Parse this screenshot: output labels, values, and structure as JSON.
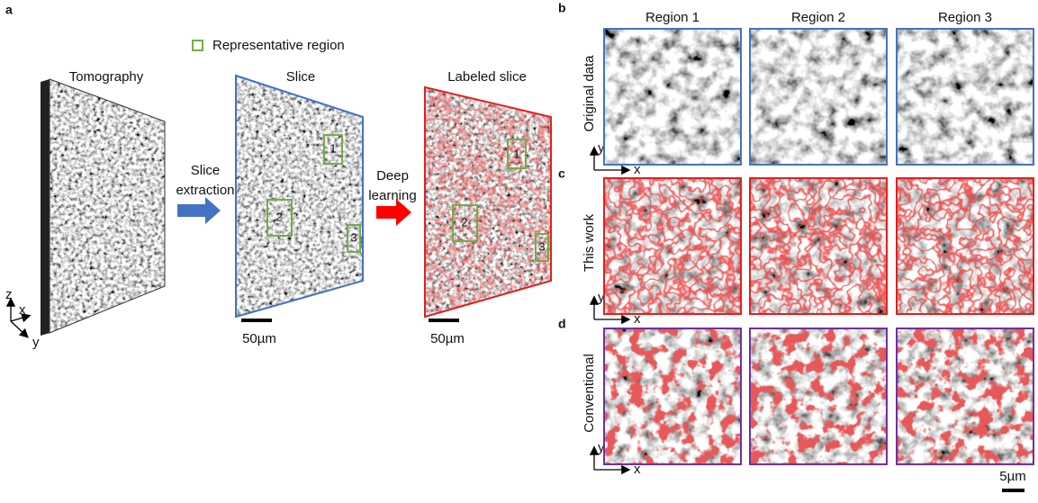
{
  "panel_a": {
    "label": "a",
    "legend": "Representative region",
    "titles": {
      "tomography": "Tomography",
      "slice": "Slice",
      "labeled": "Labeled slice"
    },
    "step1": [
      "Slice",
      "extraction"
    ],
    "step2": [
      "Deep",
      "learning"
    ],
    "scale_bars": [
      "50µm",
      "50µm"
    ],
    "axes": [
      "z",
      "x",
      "y"
    ],
    "slice_regions": [
      "1",
      "2",
      "3"
    ],
    "labeled_regions": [
      "1",
      "2",
      "3"
    ]
  },
  "panel_grid": {
    "columns": [
      "Region 1",
      "Region 2",
      "Region 3"
    ],
    "rows": [
      {
        "label": "b",
        "name": "Original data",
        "axes": [
          "y",
          "x"
        ]
      },
      {
        "label": "c",
        "name": "This work",
        "axes": [
          "y",
          "x"
        ]
      },
      {
        "label": "d",
        "name": "Conventional",
        "axes": [
          "y",
          "x"
        ]
      }
    ],
    "scale_bar": "5µm"
  }
}
